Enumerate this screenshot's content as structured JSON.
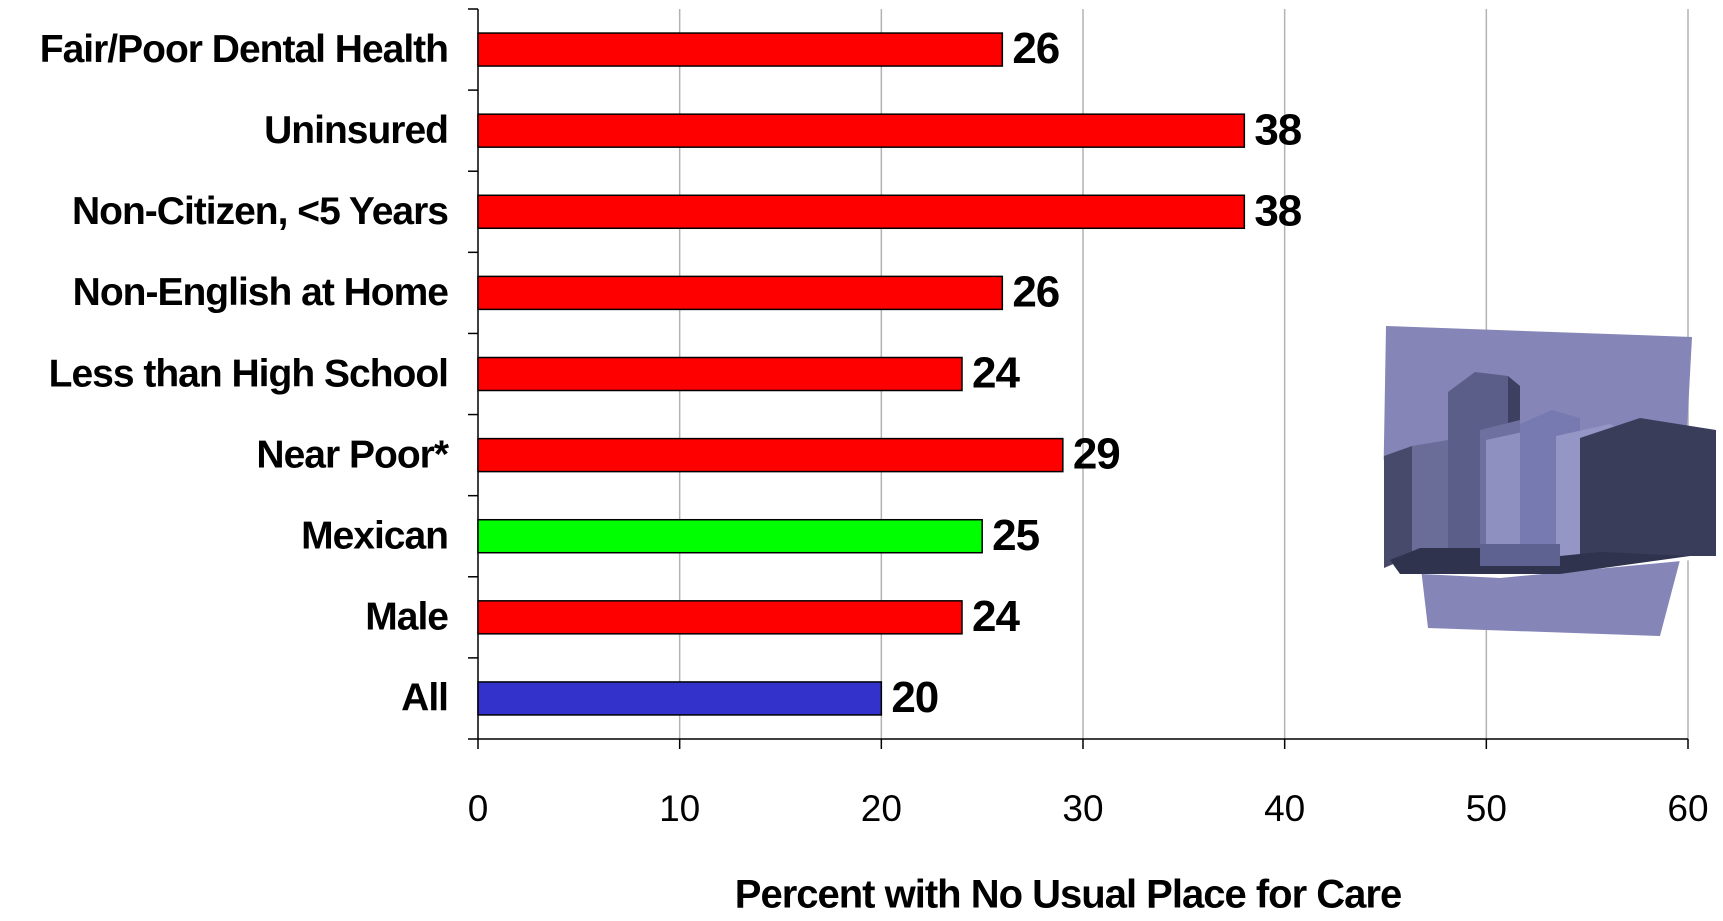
{
  "chart_data": {
    "type": "bar",
    "orientation": "horizontal",
    "x_label": "Percent with No Usual Place for Care",
    "categories": [
      "Fair/Poor Dental Health",
      "Uninsured",
      "Non-Citizen, <5 Years",
      "Non-English at Home",
      "Less than High School",
      "Near Poor*",
      "Mexican",
      "Male",
      "All"
    ],
    "values": [
      26,
      38,
      38,
      26,
      24,
      29,
      25,
      24,
      20
    ],
    "colors": [
      "#ff0000",
      "#ff0000",
      "#ff0000",
      "#ff0000",
      "#ff0000",
      "#ff0000",
      "#00ff00",
      "#ff0000",
      "#3333cc"
    ],
    "xlim": [
      0,
      60
    ],
    "xticks": [
      0,
      10,
      20,
      30,
      40,
      50,
      60
    ],
    "grid": true
  }
}
